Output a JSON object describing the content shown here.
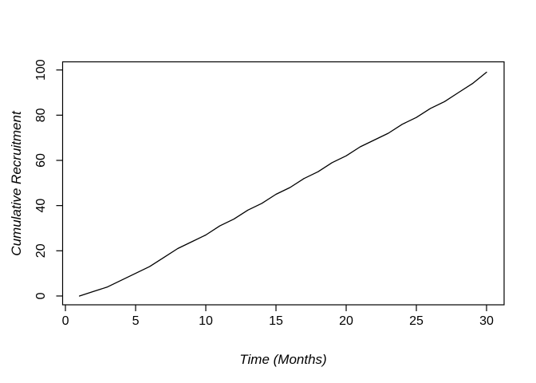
{
  "figure": {
    "background_color": "#ffffff",
    "axis_color": "#000000",
    "line_color": "#000000"
  },
  "chart_data": {
    "type": "line",
    "title": "",
    "xlabel": "Time (Months)",
    "ylabel": "Cumulative Recruitment",
    "x": [
      1,
      2,
      3,
      4,
      5,
      6,
      7,
      8,
      9,
      10,
      11,
      12,
      13,
      14,
      15,
      16,
      17,
      18,
      19,
      20,
      21,
      22,
      23,
      24,
      25,
      26,
      27,
      28,
      29,
      30
    ],
    "y": [
      0,
      2,
      4,
      7,
      10,
      13,
      17,
      21,
      24,
      27,
      31,
      34,
      38,
      41,
      45,
      48,
      52,
      55,
      59,
      62,
      66,
      69,
      72,
      76,
      79,
      83,
      86,
      90,
      94,
      99
    ],
    "xticks": [
      0,
      5,
      10,
      15,
      20,
      25,
      30
    ],
    "yticks": [
      0,
      20,
      40,
      60,
      80,
      100
    ],
    "xlim": [
      -0.2,
      31.25
    ],
    "ylim": [
      -3.9,
      103.6
    ],
    "grid": false,
    "legend": null,
    "line_width": 1.3
  }
}
